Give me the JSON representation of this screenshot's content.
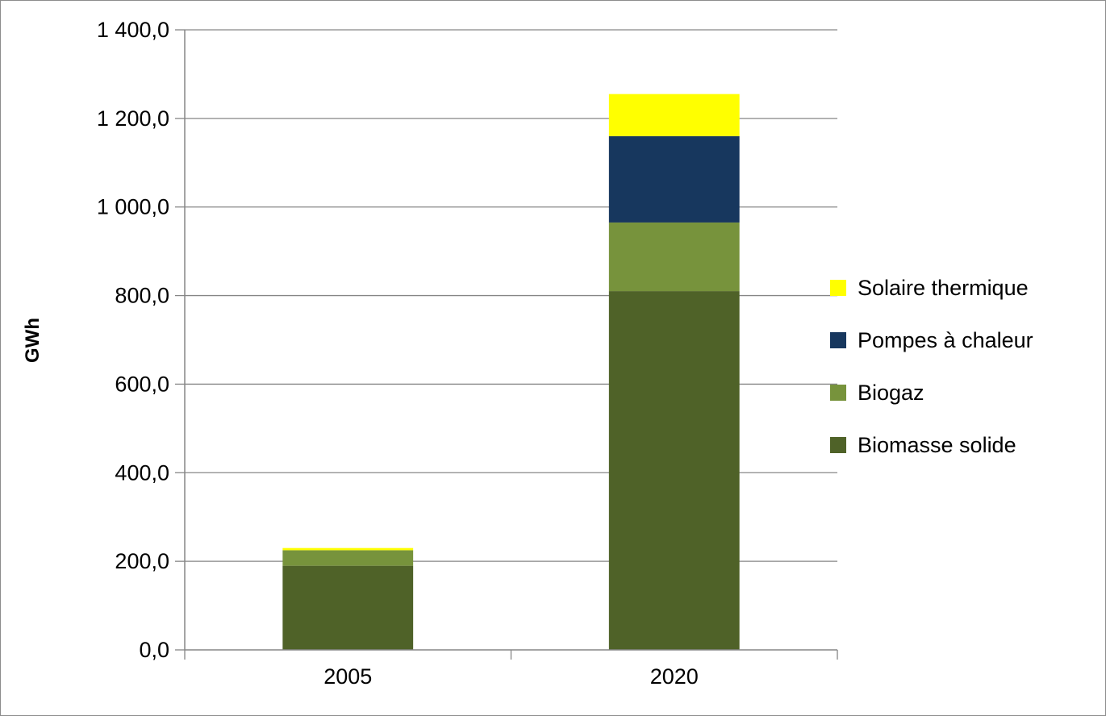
{
  "chart_data": {
    "type": "bar",
    "stacked": true,
    "title": "",
    "xlabel": "",
    "ylabel": "GWh",
    "ylim": [
      0,
      1400
    ],
    "ytick_step": 200,
    "ytick_labels": [
      "0,0",
      "200,0",
      "400,0",
      "600,0",
      "800,0",
      "1 000,0",
      "1 200,0",
      "1 400,0"
    ],
    "categories": [
      "2005",
      "2020"
    ],
    "grid": true,
    "legend_position": "right",
    "series": [
      {
        "name": "Biomasse solide",
        "color": "#4f6228",
        "values": [
          190,
          810
        ]
      },
      {
        "name": "Biogaz",
        "color": "#77933c",
        "values": [
          35,
          155
        ]
      },
      {
        "name": "Pompes à chaleur",
        "color": "#17375e",
        "values": [
          0,
          195
        ]
      },
      {
        "name": "Solaire thermique",
        "color": "#ffff00",
        "values": [
          5,
          95
        ]
      }
    ]
  }
}
